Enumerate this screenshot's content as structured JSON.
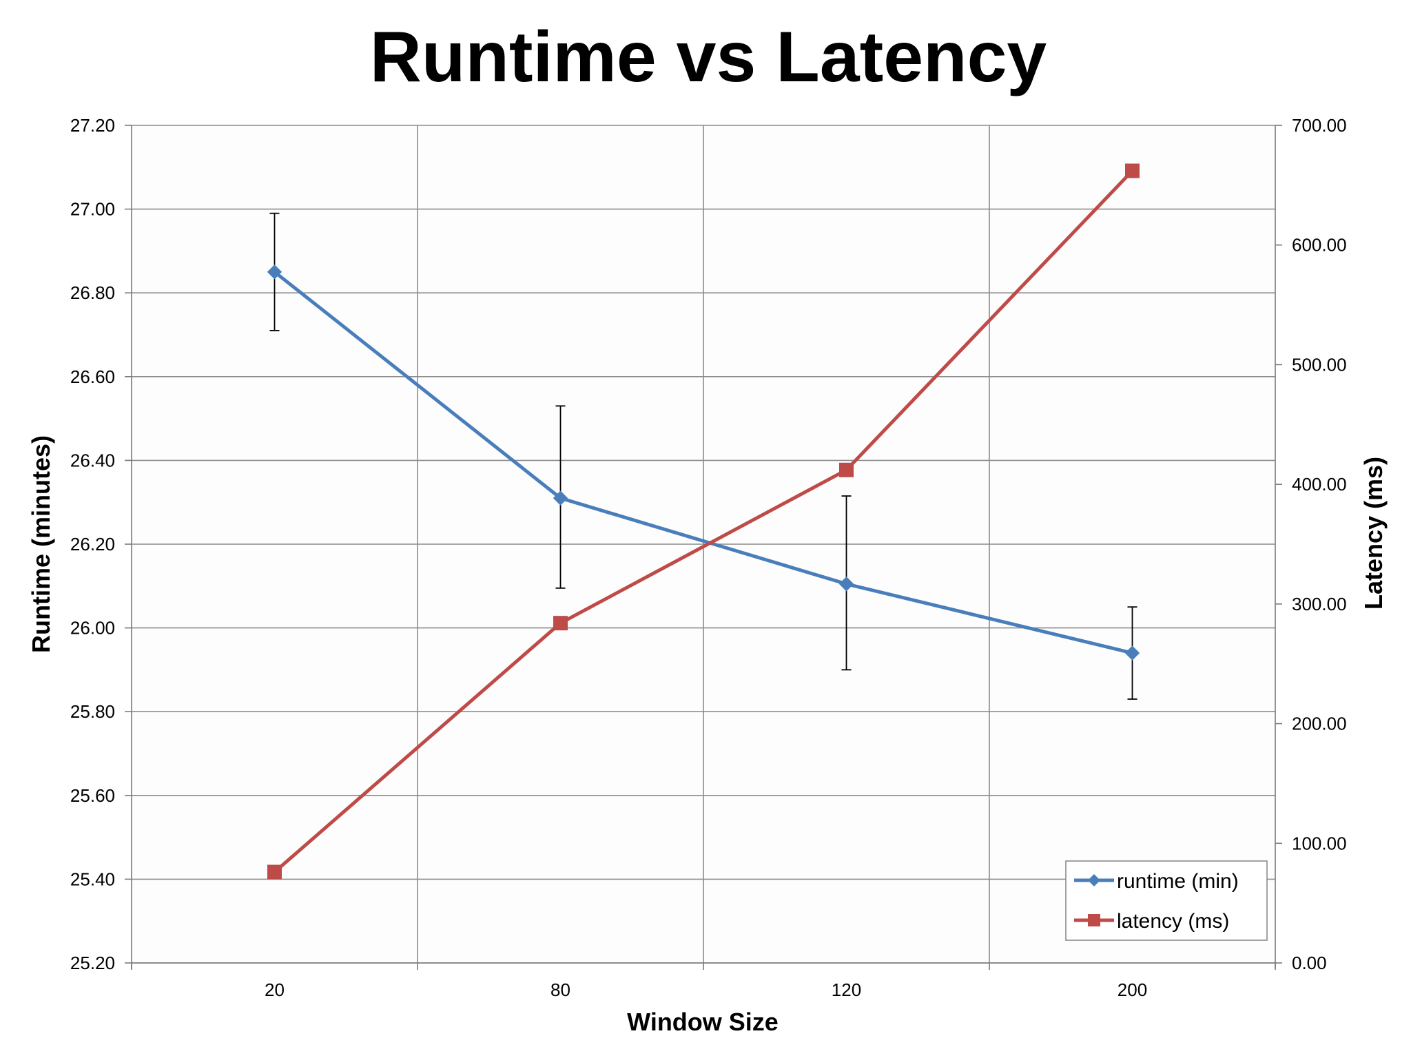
{
  "chart_data": {
    "type": "line",
    "title": "Runtime vs Latency",
    "xlabel": "Window Size",
    "ylabel": "Runtime (minutes)",
    "y2label": "Latency (ms)",
    "categories": [
      "20",
      "80",
      "120",
      "200"
    ],
    "ylim": [
      25.2,
      27.2
    ],
    "y_ticks": [
      "25.20",
      "25.40",
      "25.60",
      "25.80",
      "26.00",
      "26.20",
      "26.40",
      "26.60",
      "26.80",
      "27.00",
      "27.20"
    ],
    "y2lim": [
      0,
      700
    ],
    "y2_ticks": [
      "0.00",
      "100.00",
      "200.00",
      "300.00",
      "400.00",
      "500.00",
      "600.00",
      "700.00"
    ],
    "grid": true,
    "legend_position": "bottom-right",
    "series": [
      {
        "name": "runtime (min)",
        "axis": "left",
        "color": "#4a7ebb",
        "marker": "diamond",
        "values": [
          26.85,
          26.31,
          26.105,
          25.94
        ],
        "error_low": [
          26.71,
          26.095,
          25.9,
          25.83
        ],
        "error_high": [
          26.99,
          26.53,
          26.315,
          26.05
        ]
      },
      {
        "name": "latency (ms)",
        "axis": "right",
        "color": "#be4b48",
        "marker": "square",
        "values": [
          76,
          284,
          412,
          662
        ]
      }
    ]
  }
}
